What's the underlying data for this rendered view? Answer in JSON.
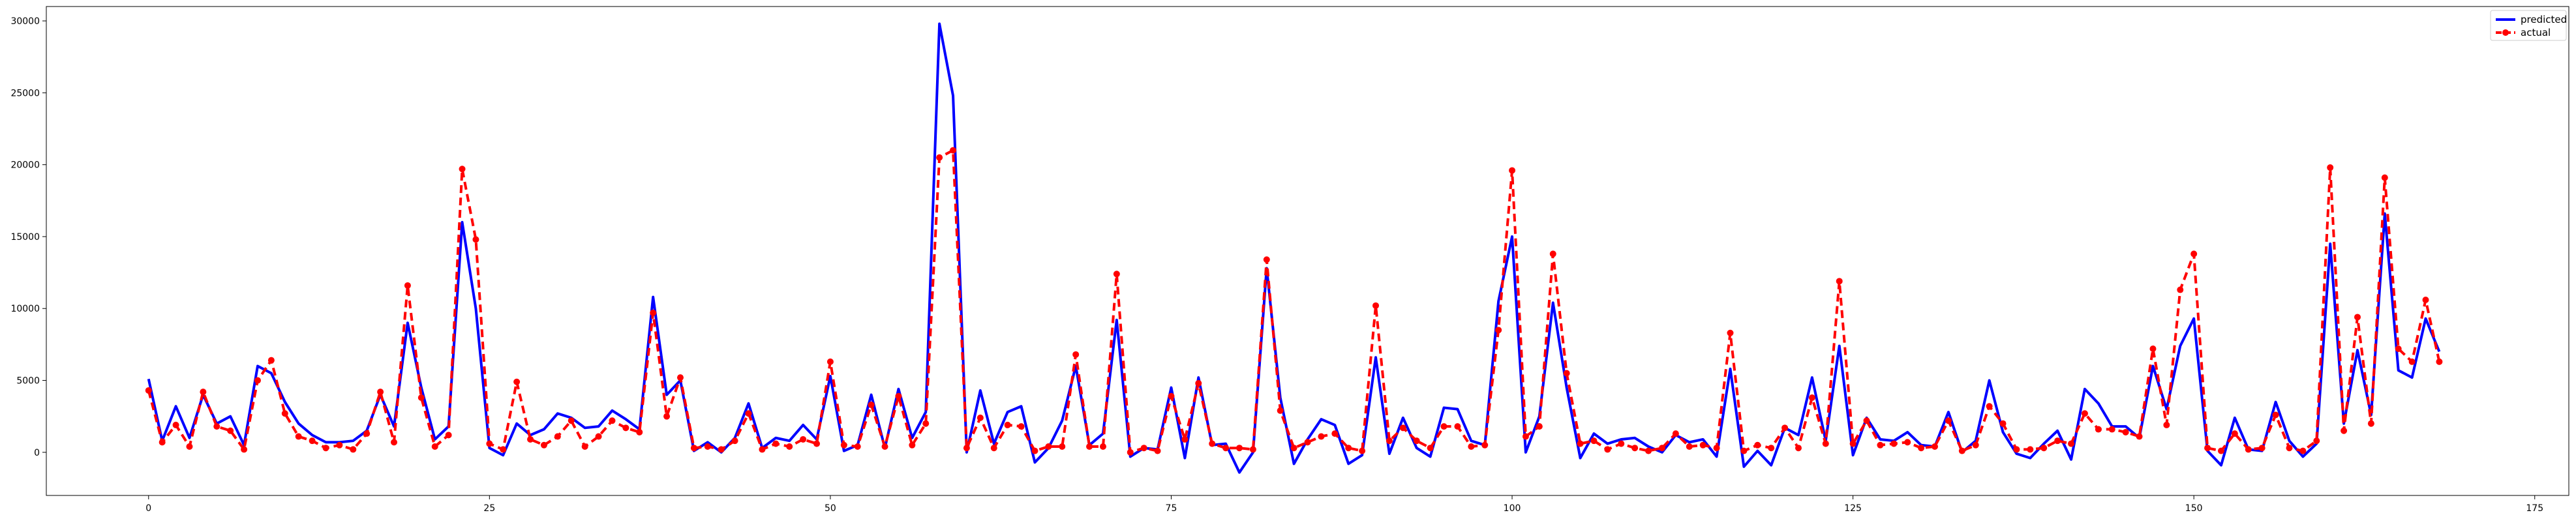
{
  "chart_data": {
    "type": "line",
    "title": "",
    "xlabel": "",
    "ylabel": "",
    "xlim": [
      -7.5,
      177.5
    ],
    "ylim": [
      -3000,
      31000
    ],
    "xticks": [
      0,
      25,
      50,
      75,
      100,
      125,
      150,
      175
    ],
    "yticks": [
      0,
      5000,
      10000,
      15000,
      20000,
      25000,
      30000
    ],
    "grid": false,
    "legend_position": "top-right",
    "series": [
      {
        "name": "predicted",
        "color": "#0000ff",
        "style": "solid",
        "values": [
          5100,
          800,
          3200,
          1000,
          4000,
          2000,
          2500,
          500,
          6000,
          5500,
          3500,
          2000,
          1200,
          700,
          700,
          800,
          1500,
          4000,
          1800,
          9000,
          4500,
          900,
          1800,
          16000,
          10000,
          300,
          -200,
          2000,
          1200,
          1600,
          2700,
          2400,
          1700,
          1800,
          2900,
          2300,
          1600,
          10800,
          4000,
          5000,
          100,
          700,
          0,
          1000,
          3400,
          300,
          1000,
          800,
          1900,
          900,
          5300,
          100,
          500,
          4000,
          300,
          4400,
          1000,
          2800,
          29800,
          24800,
          0,
          4300,
          600,
          2800,
          3200,
          -700,
          300,
          2200,
          6000,
          500,
          1300,
          9200,
          -300,
          300,
          200,
          4500,
          -400,
          5200,
          500,
          600,
          -1400,
          0,
          12800,
          3800,
          -800,
          900,
          2300,
          1900,
          -800,
          -200,
          6600,
          -100,
          2400,
          300,
          -300,
          3100,
          3000,
          800,
          500,
          10500,
          15000,
          0,
          2500,
          10400,
          4500,
          -400,
          1300,
          600,
          900,
          1000,
          400,
          0,
          1200,
          700,
          900,
          -300,
          5800,
          -1000,
          100,
          -900,
          1700,
          1200,
          5200,
          800,
          7400,
          -200,
          2400,
          900,
          800,
          1400,
          500,
          400,
          2800,
          0,
          800,
          5000,
          1400,
          -100,
          -400,
          600,
          1500,
          -500,
          4400,
          3400,
          1800,
          1800,
          1000,
          6000,
          3000,
          7400,
          9300,
          100,
          -900,
          2400,
          200,
          100,
          3500,
          800,
          -300,
          600,
          14500,
          2000,
          7100,
          2600,
          16600,
          5700,
          5200,
          9300,
          7000
        ]
      },
      {
        "name": "actual",
        "color": "#ff0000",
        "style": "dashed",
        "values": [
          4300,
          700,
          1900,
          400,
          4200,
          1800,
          1500,
          200,
          5000,
          6400,
          2700,
          1100,
          800,
          300,
          500,
          200,
          1300,
          4200,
          700,
          11600,
          3800,
          400,
          1200,
          19700,
          14800,
          600,
          200,
          4900,
          900,
          500,
          1100,
          2200,
          400,
          1100,
          2200,
          1700,
          1400,
          9700,
          2500,
          5200,
          300,
          400,
          200,
          800,
          2700,
          200,
          600,
          400,
          900,
          600,
          6300,
          500,
          400,
          3300,
          400,
          3900,
          500,
          2000,
          20500,
          21000,
          300,
          2400,
          300,
          1900,
          1800,
          100,
          400,
          400,
          6800,
          400,
          400,
          12400,
          0,
          300,
          100,
          3900,
          900,
          4800,
          600,
          300,
          300,
          200,
          13400,
          2900,
          300,
          700,
          1100,
          1300,
          300,
          100,
          10200,
          800,
          1700,
          800,
          300,
          1800,
          1800,
          400,
          500,
          8500,
          19600,
          1100,
          1800,
          13800,
          5500,
          600,
          800,
          200,
          600,
          300,
          100,
          300,
          1300,
          400,
          500,
          300,
          8300,
          100,
          500,
          300,
          1700,
          300,
          3800,
          600,
          11900,
          600,
          2200,
          500,
          600,
          700,
          300,
          400,
          2200,
          100,
          500,
          3200,
          2000,
          200,
          200,
          300,
          800,
          600,
          2700,
          1600,
          1600,
          1400,
          1100,
          7200,
          1900,
          11300,
          13800,
          300,
          100,
          1300,
          200,
          300,
          2600,
          300,
          100,
          800,
          19800,
          1500,
          9400,
          2000,
          19100,
          7200,
          6300,
          10600,
          6300
        ]
      }
    ]
  }
}
